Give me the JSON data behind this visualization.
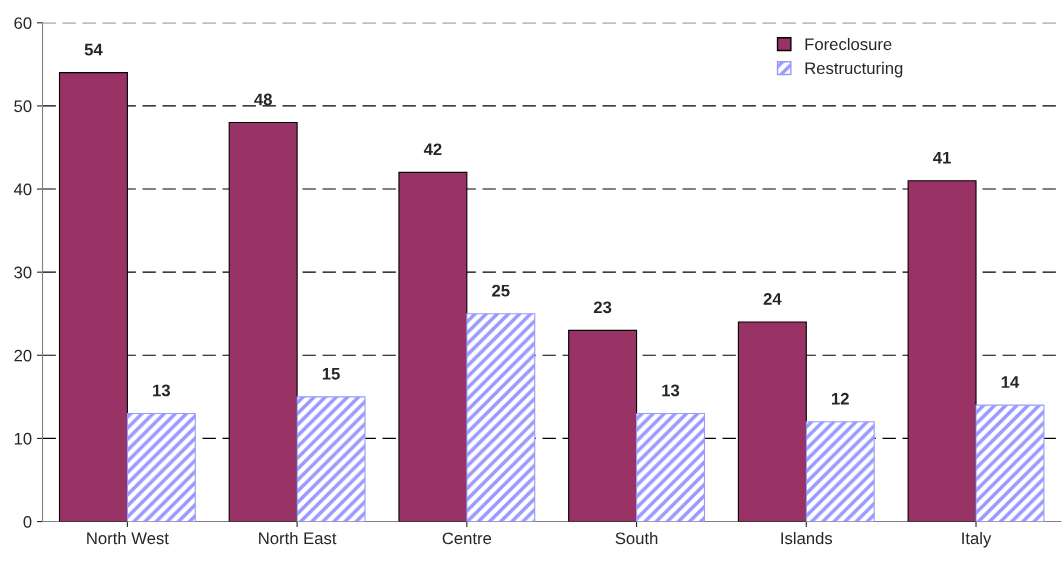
{
  "chart_data": {
    "type": "bar",
    "categories": [
      "North West",
      "North East",
      "Centre",
      "South",
      "Islands",
      "Italy"
    ],
    "series": [
      {
        "name": "Foreclosure",
        "color": "#993366",
        "values": [
          54,
          48,
          42,
          23,
          24,
          41
        ]
      },
      {
        "name": "Restructuring",
        "color": "#9999ff",
        "values": [
          13,
          15,
          25,
          13,
          12,
          14
        ]
      }
    ],
    "ylim": [
      0,
      60
    ],
    "yticks": [
      0,
      10,
      20,
      30,
      40,
      50,
      60
    ],
    "grid": "y",
    "legend": "top right",
    "data_labels": true
  }
}
